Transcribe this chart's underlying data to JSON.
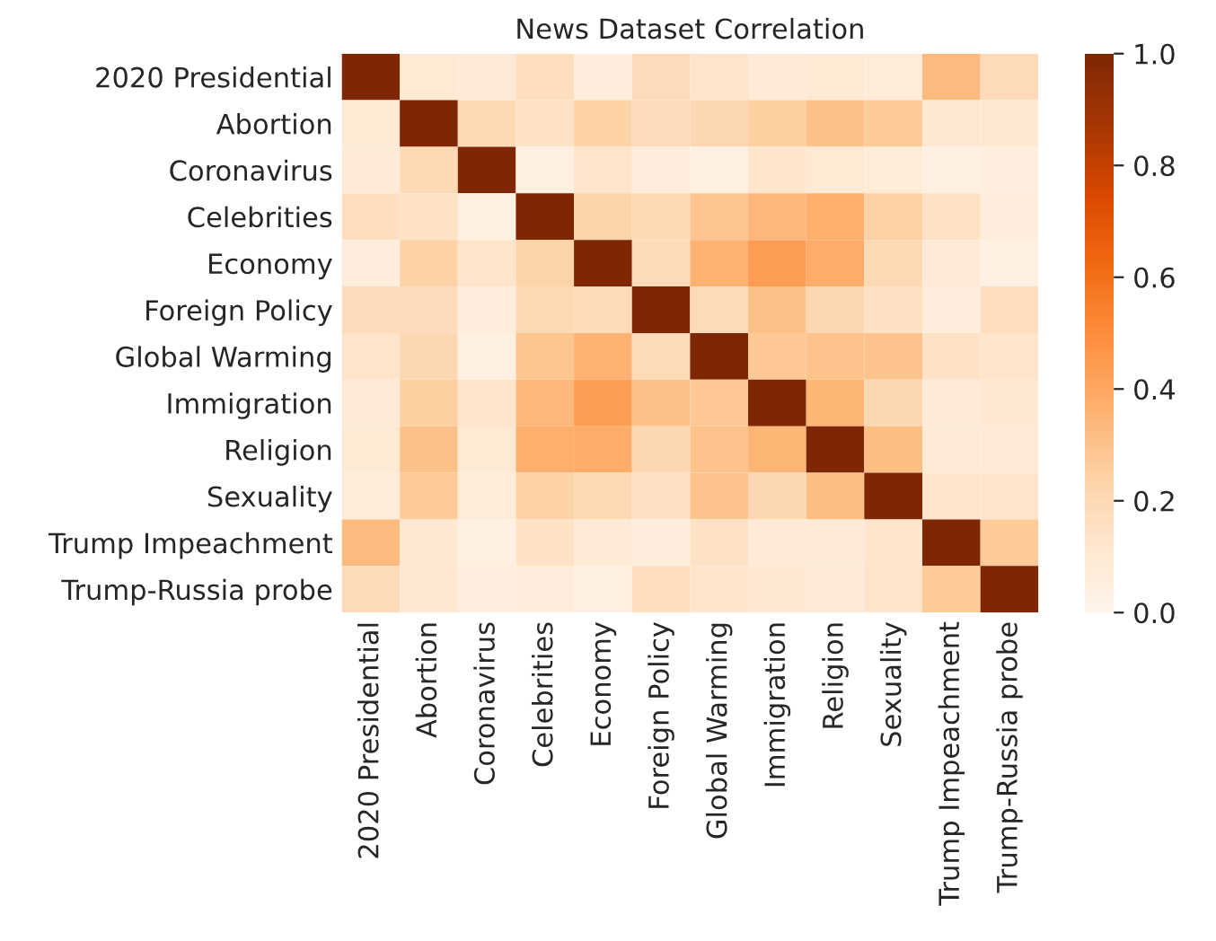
{
  "chart_data": {
    "type": "heatmap",
    "title": "News Dataset Correlation",
    "categories": [
      "2020 Presidential",
      "Abortion",
      "Coronavirus",
      "Celebrities",
      "Economy",
      "Foreign Policy",
      "Global Warming",
      "Immigration",
      "Religion",
      "Sexuality",
      "Trump Impeachment",
      "Trump-Russia probe"
    ],
    "y_categories": [
      "2020 Presidential",
      "Abortion",
      "Coronavirus",
      "Celebrities",
      "Economy",
      "Foreign Policy",
      "Global Warming",
      "Immigration",
      "Religion",
      "Sexuality",
      "Trump Impeachment",
      "Trump-Russia probe"
    ],
    "cells": [
      [
        1,
        0.1,
        0.09,
        0.17,
        0.07,
        0.18,
        0.14,
        0.09,
        0.1,
        0.08,
        0.33,
        0.19
      ],
      [
        0.1,
        1,
        0.2,
        0.15,
        0.24,
        0.18,
        0.21,
        0.25,
        0.31,
        0.27,
        0.11,
        0.11
      ],
      [
        0.09,
        0.2,
        1,
        0.04,
        0.14,
        0.07,
        0.04,
        0.13,
        0.1,
        0.08,
        0.04,
        0.06
      ],
      [
        0.17,
        0.15,
        0.04,
        1,
        0.23,
        0.2,
        0.29,
        0.34,
        0.37,
        0.24,
        0.15,
        0.07
      ],
      [
        0.07,
        0.24,
        0.14,
        0.23,
        1,
        0.19,
        0.36,
        0.44,
        0.38,
        0.2,
        0.09,
        0.04
      ],
      [
        0.18,
        0.18,
        0.07,
        0.2,
        0.19,
        1,
        0.19,
        0.31,
        0.21,
        0.16,
        0.07,
        0.17
      ],
      [
        0.14,
        0.21,
        0.04,
        0.29,
        0.36,
        0.19,
        1,
        0.28,
        0.3,
        0.3,
        0.15,
        0.13
      ],
      [
        0.09,
        0.25,
        0.13,
        0.34,
        0.44,
        0.31,
        0.28,
        1,
        0.35,
        0.21,
        0.09,
        0.11
      ],
      [
        0.1,
        0.31,
        0.1,
        0.37,
        0.38,
        0.21,
        0.3,
        0.35,
        1,
        0.32,
        0.09,
        0.09
      ],
      [
        0.08,
        0.27,
        0.08,
        0.24,
        0.2,
        0.16,
        0.3,
        0.21,
        0.32,
        1,
        0.13,
        0.14
      ],
      [
        0.33,
        0.11,
        0.04,
        0.15,
        0.09,
        0.07,
        0.15,
        0.09,
        0.09,
        0.13,
        1,
        0.27
      ],
      [
        0.19,
        0.11,
        0.06,
        0.07,
        0.04,
        0.17,
        0.13,
        0.11,
        0.09,
        0.14,
        0.27,
        1
      ]
    ],
    "clim": [
      0.0,
      1.0
    ],
    "cticks": [
      {
        "value": 0.0,
        "label": "0.0"
      },
      {
        "value": 0.2,
        "label": "0.2"
      },
      {
        "value": 0.4,
        "label": "0.4"
      },
      {
        "value": 0.6,
        "label": "0.6"
      },
      {
        "value": 0.8,
        "label": "0.8"
      },
      {
        "value": 1.0,
        "label": "1.0"
      }
    ]
  }
}
